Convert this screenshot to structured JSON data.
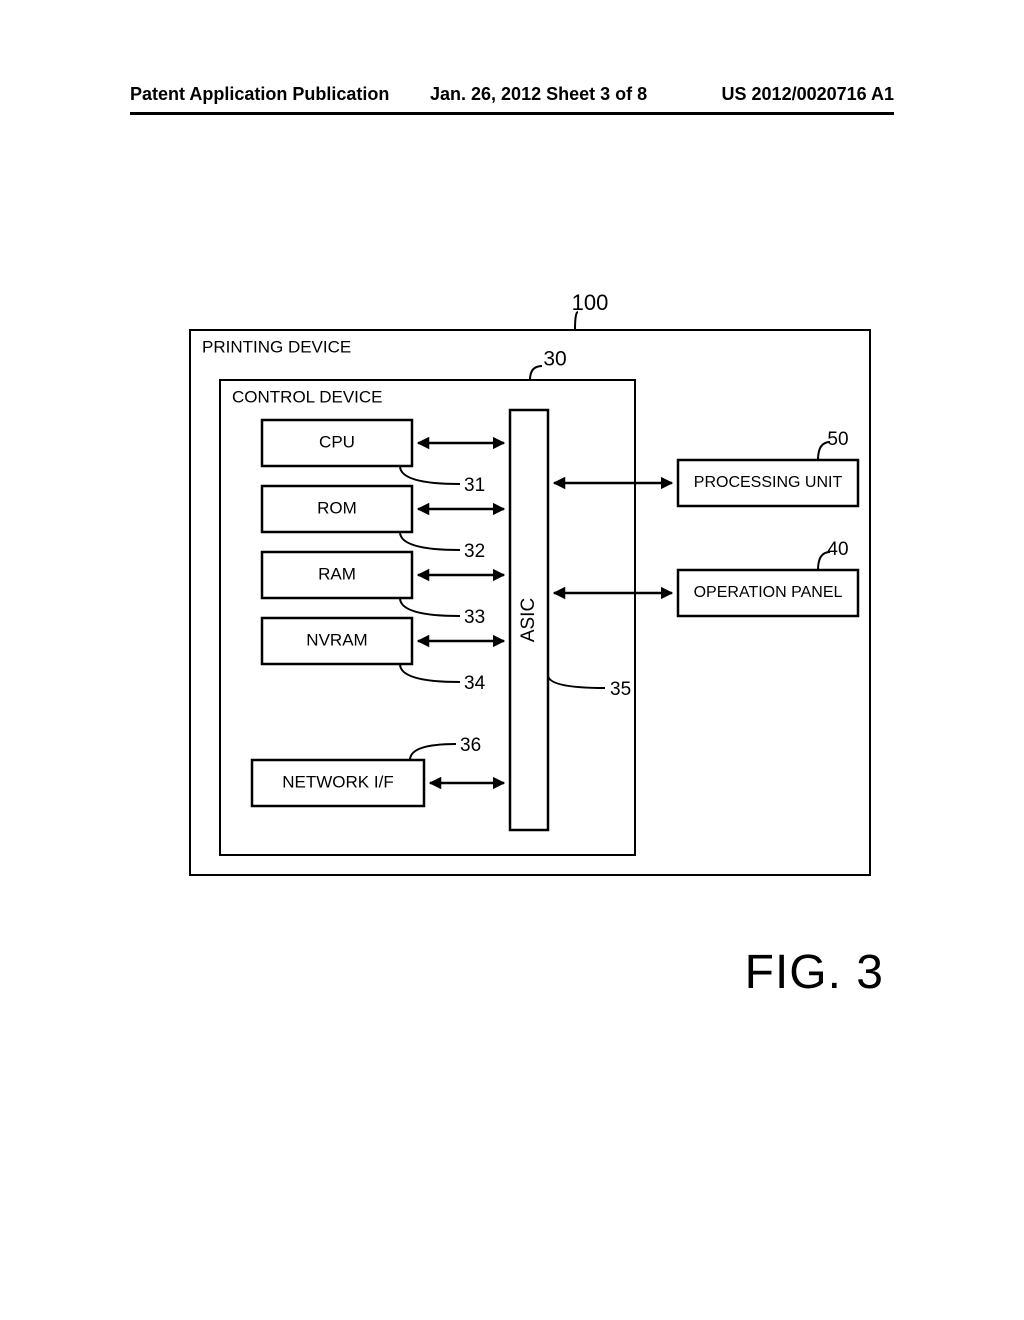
{
  "header": {
    "left": "Patent Application Publication",
    "center": "Jan. 26, 2012  Sheet 3 of 8",
    "right": "US 2012/0020716 A1"
  },
  "figure": {
    "caption": "FIG. 3",
    "outer_ref": "100",
    "inner_ref": "30",
    "outer_label": "PRINTING DEVICE",
    "inner_label": "CONTROL DEVICE",
    "asic_label": "ASIC",
    "asic_ref": "35",
    "left_blocks": [
      {
        "label": "CPU",
        "ref": "31"
      },
      {
        "label": "ROM",
        "ref": "32"
      },
      {
        "label": "RAM",
        "ref": "33"
      },
      {
        "label": "NVRAM",
        "ref": "34"
      }
    ],
    "network_block": {
      "label": "NETWORK I/F",
      "ref": "36"
    },
    "right_blocks": [
      {
        "label": "PROCESSING UNIT",
        "ref": "50"
      },
      {
        "label": "OPERATION PANEL",
        "ref": "40"
      }
    ],
    "stroke_color": "#000000",
    "stroke_width": 2.5,
    "font_family": "Arial, Helvetica, sans-serif",
    "block_font_size": 17,
    "ref_font_size": 19
  }
}
